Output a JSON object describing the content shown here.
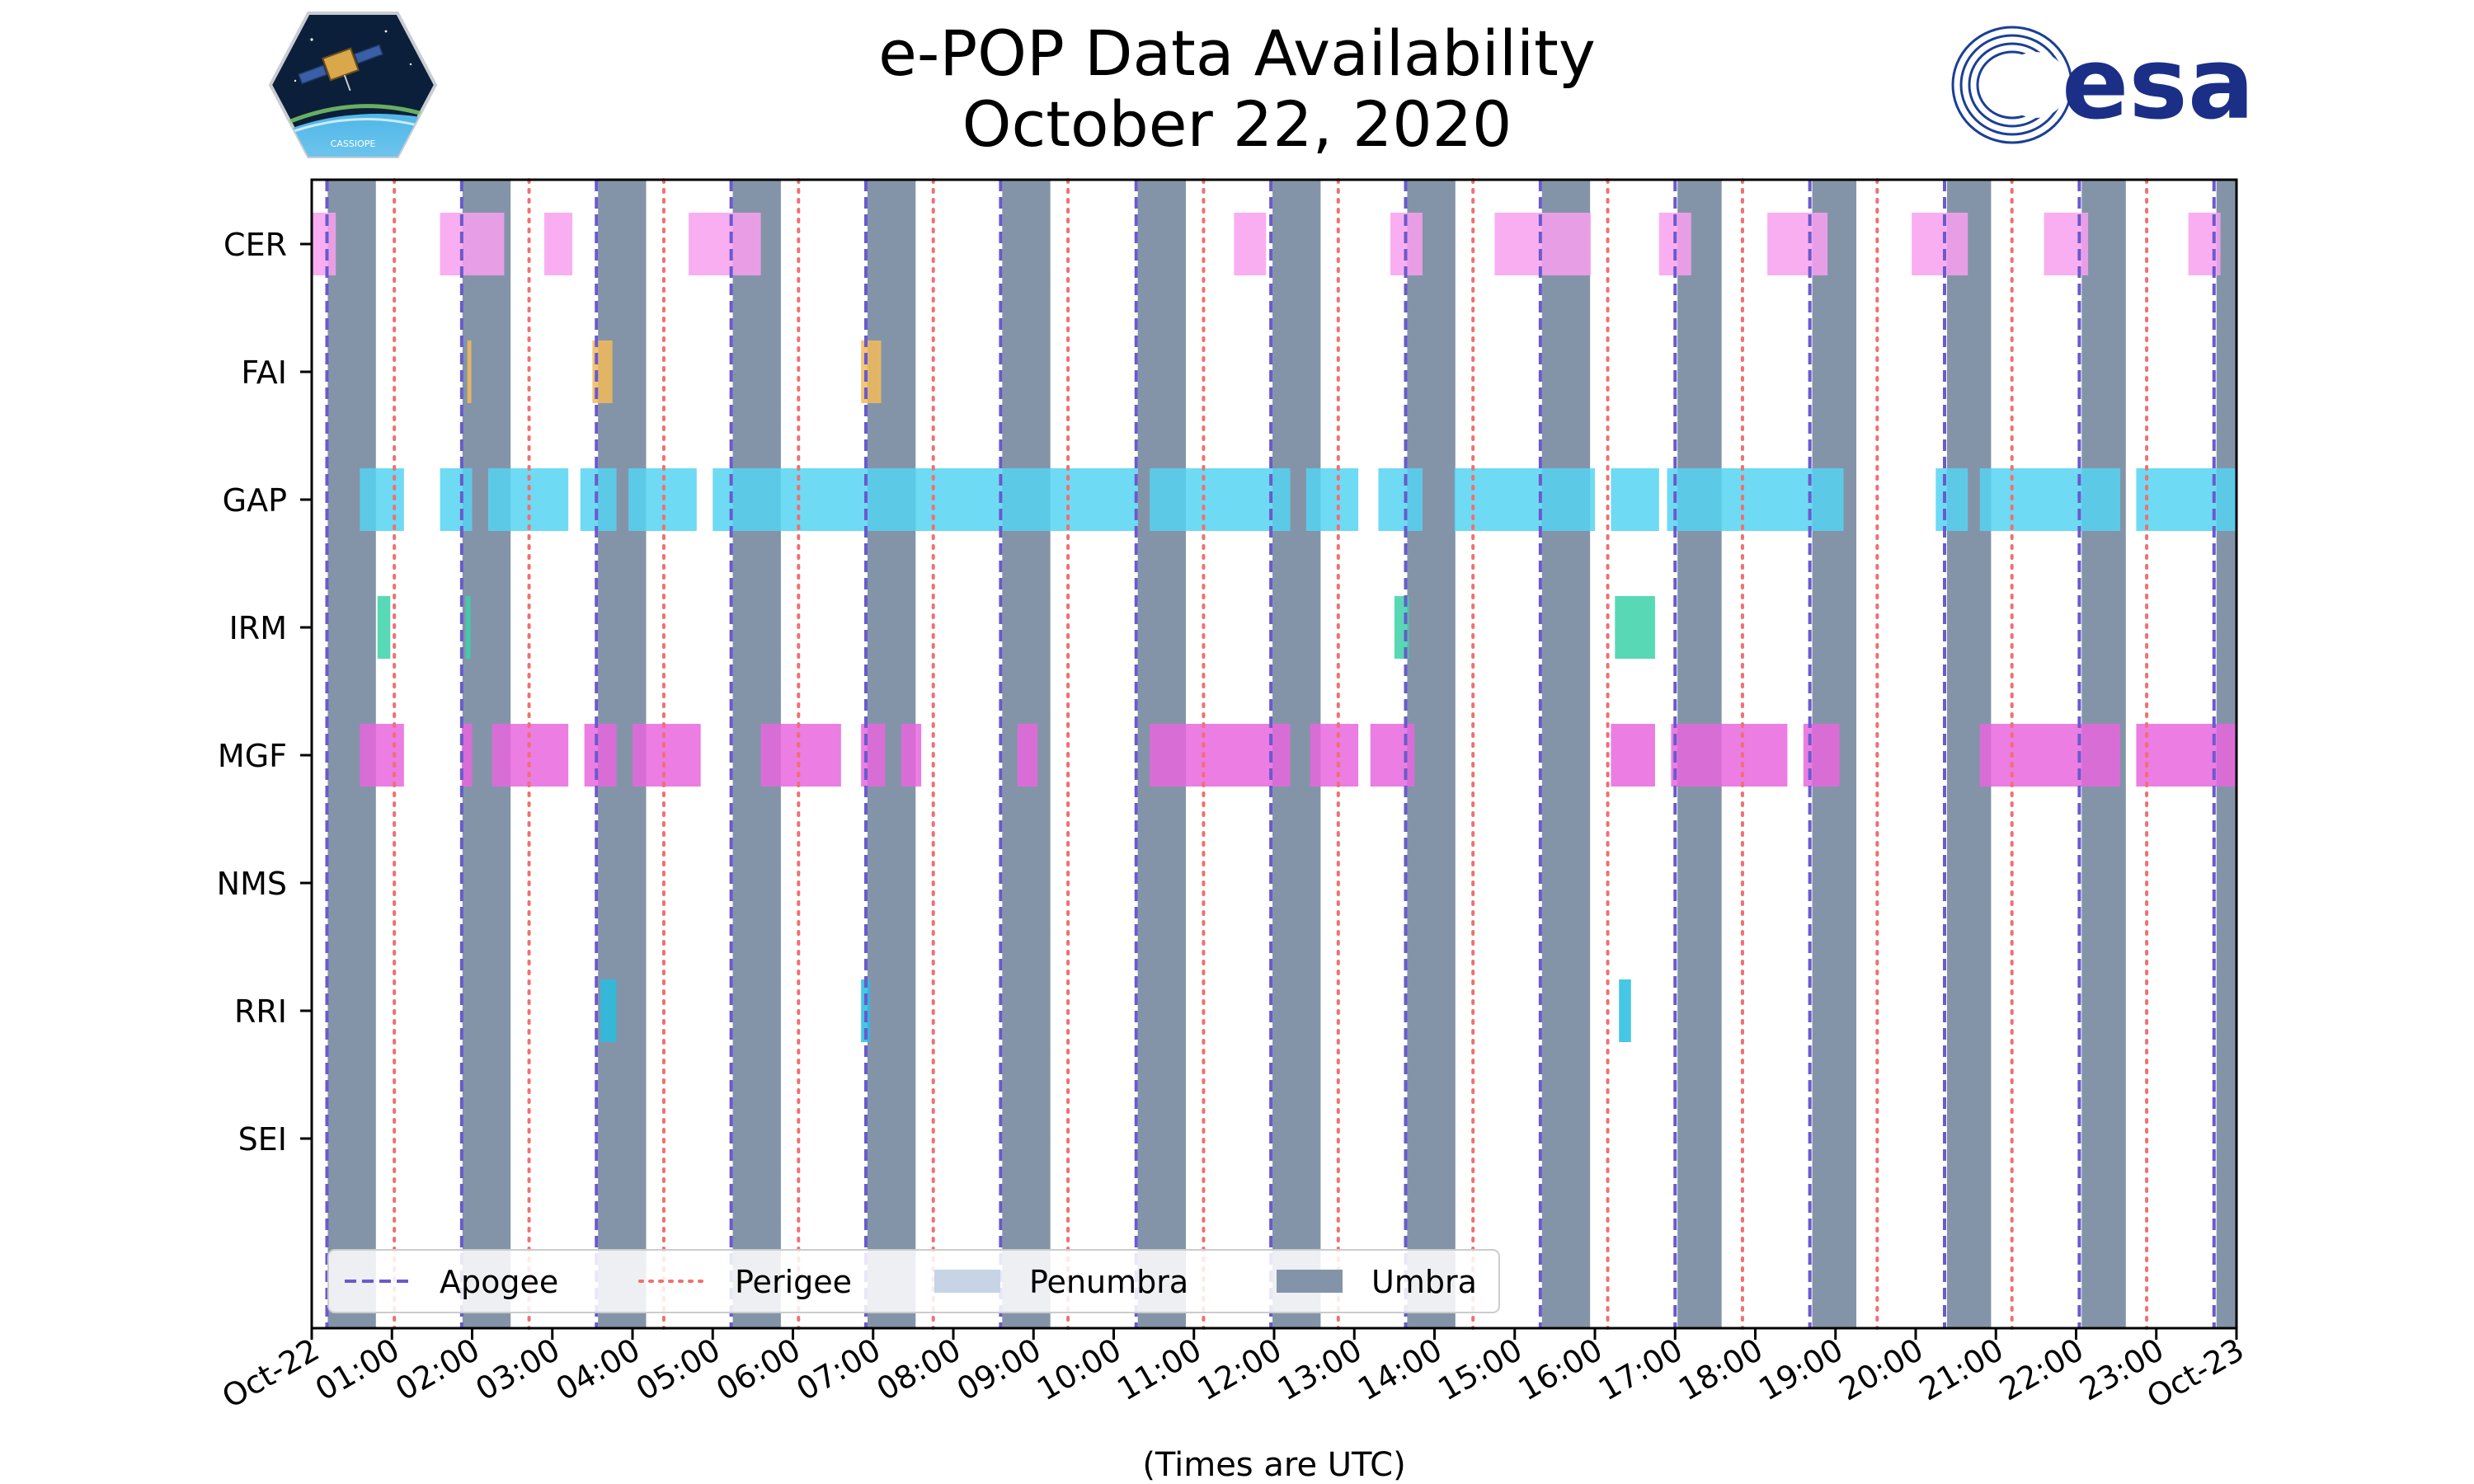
{
  "title": {
    "line1": "e-POP Data Availability",
    "line2": "October 22, 2020"
  },
  "logos": {
    "left": "CASSIOPE",
    "right": "esa"
  },
  "chart_data": {
    "type": "timeline",
    "xlabel": "(Times are UTC)",
    "x_unit": "hours",
    "xlim": [
      0,
      24
    ],
    "xticks": [
      {
        "value": 0,
        "label": "Oct-22"
      },
      {
        "value": 1,
        "label": "01:00"
      },
      {
        "value": 2,
        "label": "02:00"
      },
      {
        "value": 3,
        "label": "03:00"
      },
      {
        "value": 4,
        "label": "04:00"
      },
      {
        "value": 5,
        "label": "05:00"
      },
      {
        "value": 6,
        "label": "06:00"
      },
      {
        "value": 7,
        "label": "07:00"
      },
      {
        "value": 8,
        "label": "08:00"
      },
      {
        "value": 9,
        "label": "09:00"
      },
      {
        "value": 10,
        "label": "10:00"
      },
      {
        "value": 11,
        "label": "11:00"
      },
      {
        "value": 12,
        "label": "12:00"
      },
      {
        "value": 13,
        "label": "13:00"
      },
      {
        "value": 14,
        "label": "14:00"
      },
      {
        "value": 15,
        "label": "15:00"
      },
      {
        "value": 16,
        "label": "16:00"
      },
      {
        "value": 17,
        "label": "17:00"
      },
      {
        "value": 18,
        "label": "18:00"
      },
      {
        "value": 19,
        "label": "19:00"
      },
      {
        "value": 20,
        "label": "20:00"
      },
      {
        "value": 21,
        "label": "21:00"
      },
      {
        "value": 22,
        "label": "22:00"
      },
      {
        "value": 23,
        "label": "23:00"
      },
      {
        "value": 24,
        "label": "Oct-23"
      }
    ],
    "categories": [
      "CER",
      "FAI",
      "GAP",
      "IRM",
      "MGF",
      "NMS",
      "RRI",
      "SEI"
    ],
    "apogee": [
      0.19,
      1.87,
      3.55,
      5.23,
      6.91,
      8.59,
      10.28,
      11.96,
      13.64,
      15.32,
      17.0,
      18.68,
      20.36,
      22.04,
      23.72
    ],
    "perigee": [
      1.03,
      2.71,
      4.39,
      6.07,
      7.75,
      9.43,
      11.12,
      12.8,
      14.48,
      16.16,
      17.84,
      19.52,
      21.2,
      22.88
    ],
    "umbra": [
      [
        0.2,
        0.8
      ],
      [
        1.88,
        2.48
      ],
      [
        3.57,
        4.17
      ],
      [
        5.25,
        5.85
      ],
      [
        6.93,
        7.53
      ],
      [
        8.61,
        9.21
      ],
      [
        10.3,
        10.9
      ],
      [
        11.98,
        12.58
      ],
      [
        13.66,
        14.26
      ],
      [
        15.34,
        15.94
      ],
      [
        17.03,
        17.58
      ],
      [
        18.71,
        19.26
      ],
      [
        20.39,
        20.94
      ],
      [
        22.07,
        22.62
      ],
      [
        23.75,
        24.0
      ]
    ],
    "legend": {
      "position": "bottom-left",
      "entries": [
        "Apogee",
        "Perigee",
        "Penumbra",
        "Umbra"
      ]
    },
    "colors": {
      "umbra": "#8494a8",
      "penumbra": "#c6d4e6",
      "apogee": "#6a5acd",
      "perigee": "#f07070",
      "CER": "#f9a0f0",
      "FAI": "#f2bb5a",
      "GAP": "#55d4f2",
      "IRM": "#3cd1a8",
      "MGF": "#e866de",
      "NMS": "#999999",
      "RRI": "#27bde0",
      "SEI": "#999999"
    },
    "series": [
      {
        "name": "CER",
        "intervals": [
          [
            0.0,
            0.3
          ],
          [
            1.6,
            2.4
          ],
          [
            2.9,
            3.25
          ],
          [
            4.7,
            5.6
          ],
          [
            11.5,
            11.9
          ],
          [
            13.45,
            13.85
          ],
          [
            14.75,
            15.95
          ],
          [
            16.8,
            17.2
          ],
          [
            18.15,
            18.9
          ],
          [
            19.95,
            20.65
          ],
          [
            21.6,
            22.15
          ],
          [
            23.4,
            23.8
          ]
        ]
      },
      {
        "name": "FAI",
        "intervals": [
          [
            1.94,
            1.99
          ],
          [
            3.5,
            3.75
          ],
          [
            6.85,
            7.1
          ]
        ]
      },
      {
        "name": "GAP",
        "intervals": [
          [
            0.6,
            1.15
          ],
          [
            1.6,
            2.0
          ],
          [
            2.2,
            3.2
          ],
          [
            3.35,
            3.8
          ],
          [
            3.95,
            4.8
          ],
          [
            5.0,
            10.3
          ],
          [
            10.45,
            12.2
          ],
          [
            12.4,
            13.05
          ],
          [
            13.3,
            13.85
          ],
          [
            14.25,
            16.0
          ],
          [
            16.2,
            16.8
          ],
          [
            16.9,
            19.1
          ],
          [
            20.25,
            20.65
          ],
          [
            20.8,
            22.55
          ],
          [
            22.75,
            24.0
          ]
        ]
      },
      {
        "name": "IRM",
        "intervals": [
          [
            0.82,
            0.98
          ],
          [
            1.92,
            1.98
          ],
          [
            13.5,
            13.68
          ],
          [
            16.25,
            16.75
          ]
        ]
      },
      {
        "name": "MGF",
        "intervals": [
          [
            0.6,
            1.15
          ],
          [
            1.87,
            2.0
          ],
          [
            2.25,
            3.2
          ],
          [
            3.4,
            3.8
          ],
          [
            4.0,
            4.85
          ],
          [
            5.6,
            6.6
          ],
          [
            6.85,
            7.15
          ],
          [
            7.35,
            7.6
          ],
          [
            8.8,
            9.05
          ],
          [
            10.45,
            12.2
          ],
          [
            12.45,
            13.05
          ],
          [
            13.2,
            13.75
          ],
          [
            16.2,
            16.75
          ],
          [
            16.95,
            18.4
          ],
          [
            18.6,
            19.05
          ],
          [
            20.8,
            22.55
          ],
          [
            22.75,
            24.0
          ]
        ]
      },
      {
        "name": "NMS",
        "intervals": []
      },
      {
        "name": "RRI",
        "intervals": [
          [
            3.6,
            3.8
          ],
          [
            6.85,
            6.96
          ],
          [
            16.3,
            16.45
          ]
        ]
      },
      {
        "name": "SEI",
        "intervals": []
      }
    ]
  }
}
